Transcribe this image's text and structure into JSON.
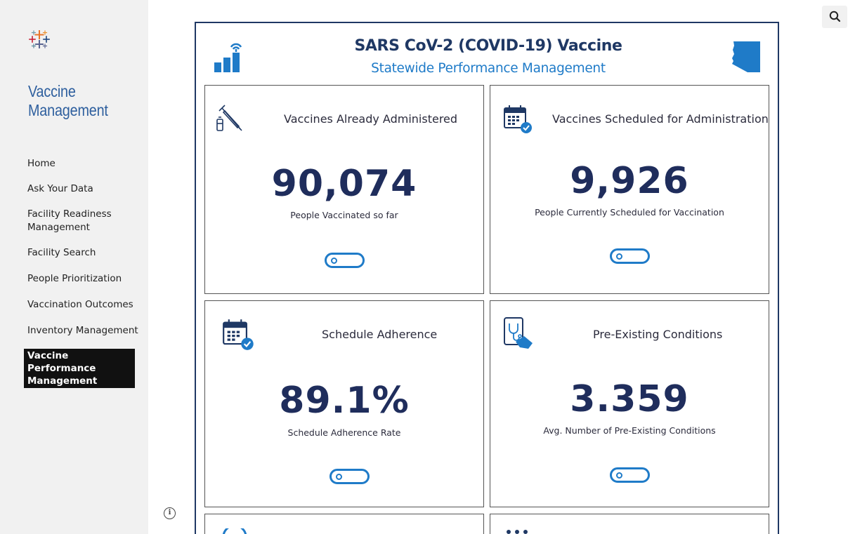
{
  "site": {
    "title_line1": "Vaccine",
    "title_line2": "Management",
    "logo_icon": "tableau-logo-icon"
  },
  "nav": {
    "items": [
      {
        "label": "Home"
      },
      {
        "label": "Ask Your Data"
      },
      {
        "label": "Facility Readiness Management"
      },
      {
        "label": "Facility Search"
      },
      {
        "label": "People Prioritization"
      },
      {
        "label": "Vaccination Outcomes"
      },
      {
        "label": "Inventory Management"
      },
      {
        "label": "Vaccine Performance Management",
        "active": true
      }
    ]
  },
  "dashboard": {
    "title": "SARS CoV-2 (COVID-19) Vaccine",
    "subtitle": "Statewide Performance Management",
    "cards": [
      {
        "title": "Vaccines Already Administered",
        "value": "90,074",
        "caption": "People Vaccinated so far",
        "icon": "syringe-icon"
      },
      {
        "title": "Vaccines Scheduled for Administration",
        "value": "9,926",
        "caption": "People Currently Scheduled for Vaccination",
        "icon": "calendar-check-icon"
      },
      {
        "title": "Schedule Adherence",
        "value": "89.1%",
        "caption": "Schedule Adherence Rate",
        "icon": "calendar-check-icon"
      },
      {
        "title": "Pre-Existing Conditions",
        "value": "3.359",
        "caption": "Avg. Number of Pre-Existing Conditions",
        "icon": "tablet-stethoscope-icon"
      }
    ]
  },
  "colors": {
    "navy": "#1f3864",
    "accent_blue": "#1f7bc8",
    "value_navy": "#1f2d5c",
    "sidebar_bg": "#f1f1f1",
    "title_blue": "#2e5f9e"
  }
}
